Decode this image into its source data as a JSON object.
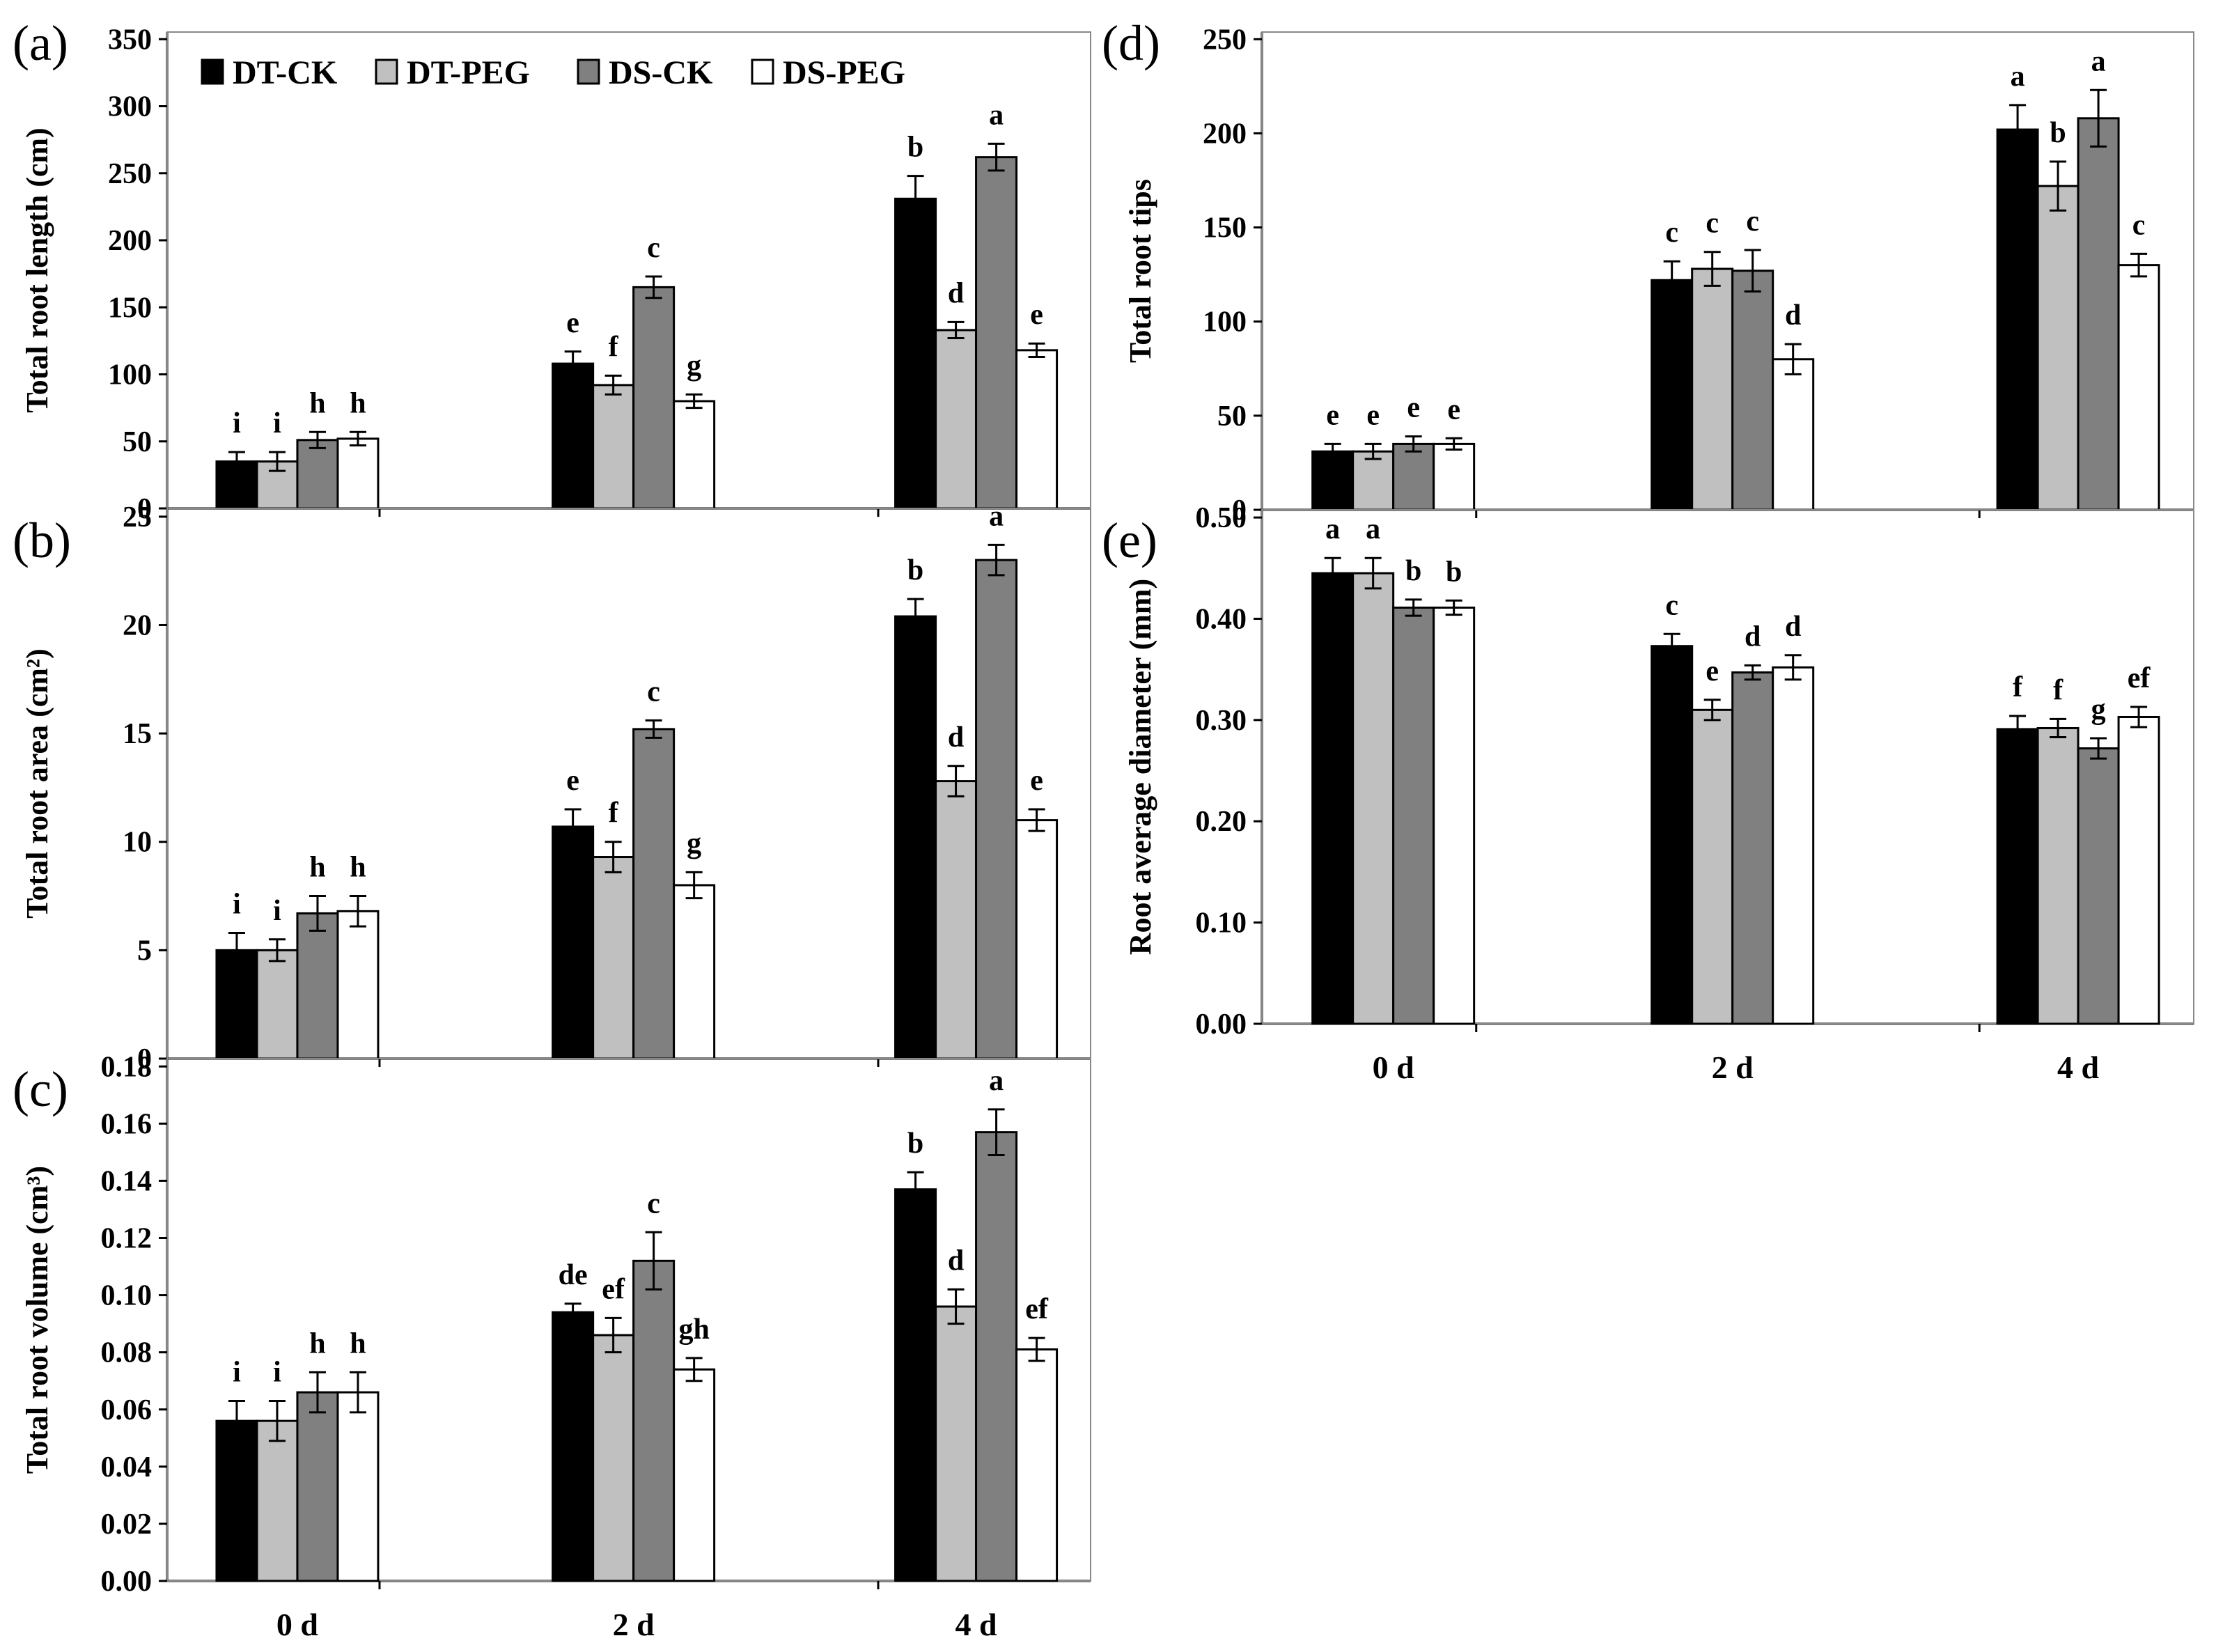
{
  "legend": [
    {
      "name": "DT-CK",
      "color": "#000000"
    },
    {
      "name": "DT-PEG",
      "color": "#c0c0c0"
    },
    {
      "name": "DS-CK",
      "color": "#808080"
    },
    {
      "name": "DS-PEG",
      "color": "#ffffff"
    }
  ],
  "chart_data": [
    {
      "panel": "(a)",
      "type": "bar",
      "ylabel": "Total root length (cm)",
      "ylim": [
        0,
        350
      ],
      "yticks": [
        "0",
        "50",
        "100",
        "150",
        "200",
        "250",
        "300",
        "350"
      ],
      "categories": [
        "0 d",
        "2 d",
        "4 d"
      ],
      "show_xlabels": false,
      "series": [
        {
          "name": "DT-CK",
          "values": [
            35,
            108,
            231
          ],
          "errors": [
            7,
            9,
            17
          ],
          "letters": [
            "i",
            "e",
            "b"
          ]
        },
        {
          "name": "DT-PEG",
          "values": [
            35,
            92,
            133
          ],
          "errors": [
            7,
            7,
            6
          ],
          "letters": [
            "i",
            "f",
            "d"
          ]
        },
        {
          "name": "DS-CK",
          "values": [
            51,
            165,
            262
          ],
          "errors": [
            6,
            8,
            10
          ],
          "letters": [
            "h",
            "c",
            "a"
          ]
        },
        {
          "name": "DS-PEG",
          "values": [
            52,
            80,
            118
          ],
          "errors": [
            5,
            5,
            5
          ],
          "letters": [
            "h",
            "g",
            "e"
          ]
        }
      ]
    },
    {
      "panel": "(b)",
      "type": "bar",
      "ylabel": "Total root area (cm²)",
      "ylim": [
        0,
        25
      ],
      "yticks": [
        "0",
        "5",
        "10",
        "15",
        "20",
        "25"
      ],
      "categories": [
        "0 d",
        "2 d",
        "4 d"
      ],
      "show_xlabels": false,
      "series": [
        {
          "name": "DT-CK",
          "values": [
            5.0,
            10.7,
            20.4
          ],
          "errors": [
            0.8,
            0.8,
            0.8
          ],
          "letters": [
            "i",
            "e",
            "b"
          ]
        },
        {
          "name": "DT-PEG",
          "values": [
            5.0,
            9.3,
            12.8
          ],
          "errors": [
            0.5,
            0.7,
            0.7
          ],
          "letters": [
            "i",
            "f",
            "d"
          ]
        },
        {
          "name": "DS-CK",
          "values": [
            6.7,
            15.2,
            23.0
          ],
          "errors": [
            0.8,
            0.4,
            0.7
          ],
          "letters": [
            "h",
            "c",
            "a"
          ]
        },
        {
          "name": "DS-PEG",
          "values": [
            6.8,
            8.0,
            11.0
          ],
          "errors": [
            0.7,
            0.6,
            0.5
          ],
          "letters": [
            "h",
            "g",
            "e"
          ]
        }
      ]
    },
    {
      "panel": "(c)",
      "type": "bar",
      "ylabel": "Total root volume (cm³)",
      "ylim": [
        0,
        0.18
      ],
      "yticks": [
        "0.00",
        "0.02",
        "0.04",
        "0.06",
        "0.08",
        "0.10",
        "0.12",
        "0.14",
        "0.16",
        "0.18"
      ],
      "categories": [
        "0 d",
        "2 d",
        "4 d"
      ],
      "show_xlabels": true,
      "series": [
        {
          "name": "DT-CK",
          "values": [
            0.056,
            0.094,
            0.137
          ],
          "errors": [
            0.007,
            0.003,
            0.006
          ],
          "letters": [
            "i",
            "de",
            "b"
          ]
        },
        {
          "name": "DT-PEG",
          "values": [
            0.056,
            0.086,
            0.096
          ],
          "errors": [
            0.007,
            0.006,
            0.006
          ],
          "letters": [
            "i",
            "ef",
            "d"
          ]
        },
        {
          "name": "DS-CK",
          "values": [
            0.066,
            0.112,
            0.157
          ],
          "errors": [
            0.007,
            0.01,
            0.008
          ],
          "letters": [
            "h",
            "c",
            "a"
          ]
        },
        {
          "name": "DS-PEG",
          "values": [
            0.066,
            0.074,
            0.081
          ],
          "errors": [
            0.007,
            0.004,
            0.004
          ],
          "letters": [
            "h",
            "gh",
            "ef"
          ]
        }
      ]
    },
    {
      "panel": "(d)",
      "type": "bar",
      "ylabel": "Total root tips",
      "ylim": [
        0,
        250
      ],
      "yticks": [
        "0",
        "50",
        "100",
        "150",
        "200",
        "250"
      ],
      "categories": [
        "0 d",
        "2 d",
        "4 d"
      ],
      "show_xlabels": false,
      "series": [
        {
          "name": "DT-CK",
          "values": [
            31,
            122,
            202
          ],
          "errors": [
            4,
            10,
            13
          ],
          "letters": [
            "e",
            "c",
            "a"
          ]
        },
        {
          "name": "DT-PEG",
          "values": [
            31,
            128,
            172
          ],
          "errors": [
            4,
            9,
            13
          ],
          "letters": [
            "e",
            "c",
            "b"
          ]
        },
        {
          "name": "DS-CK",
          "values": [
            35,
            127,
            208
          ],
          "errors": [
            4,
            11,
            15
          ],
          "letters": [
            "e",
            "c",
            "a"
          ]
        },
        {
          "name": "DS-PEG",
          "values": [
            35,
            80,
            130
          ],
          "errors": [
            3,
            8,
            6
          ],
          "letters": [
            "e",
            "d",
            "c"
          ]
        }
      ]
    },
    {
      "panel": "(e)",
      "type": "bar",
      "ylabel": "Root average diameter (mm)",
      "ylim": [
        0,
        0.5
      ],
      "yticks": [
        "0.00",
        "0.10",
        "0.20",
        "0.30",
        "0.40",
        "0.50"
      ],
      "categories": [
        "0 d",
        "2 d",
        "4 d"
      ],
      "show_xlabels": true,
      "series": [
        {
          "name": "DT-CK",
          "values": [
            0.445,
            0.373,
            0.291
          ],
          "errors": [
            0.015,
            0.012,
            0.013
          ],
          "letters": [
            "a",
            "c",
            "f"
          ]
        },
        {
          "name": "DT-PEG",
          "values": [
            0.445,
            0.31,
            0.292
          ],
          "errors": [
            0.015,
            0.01,
            0.009
          ],
          "letters": [
            "a",
            "e",
            "f"
          ]
        },
        {
          "name": "DS-CK",
          "values": [
            0.411,
            0.347,
            0.272
          ],
          "errors": [
            0.008,
            0.007,
            0.01
          ],
          "letters": [
            "b",
            "d",
            "g"
          ]
        },
        {
          "name": "DS-PEG",
          "values": [
            0.411,
            0.352,
            0.303
          ],
          "errors": [
            0.007,
            0.012,
            0.01
          ],
          "letters": [
            "b",
            "d",
            "ef"
          ]
        }
      ]
    }
  ]
}
